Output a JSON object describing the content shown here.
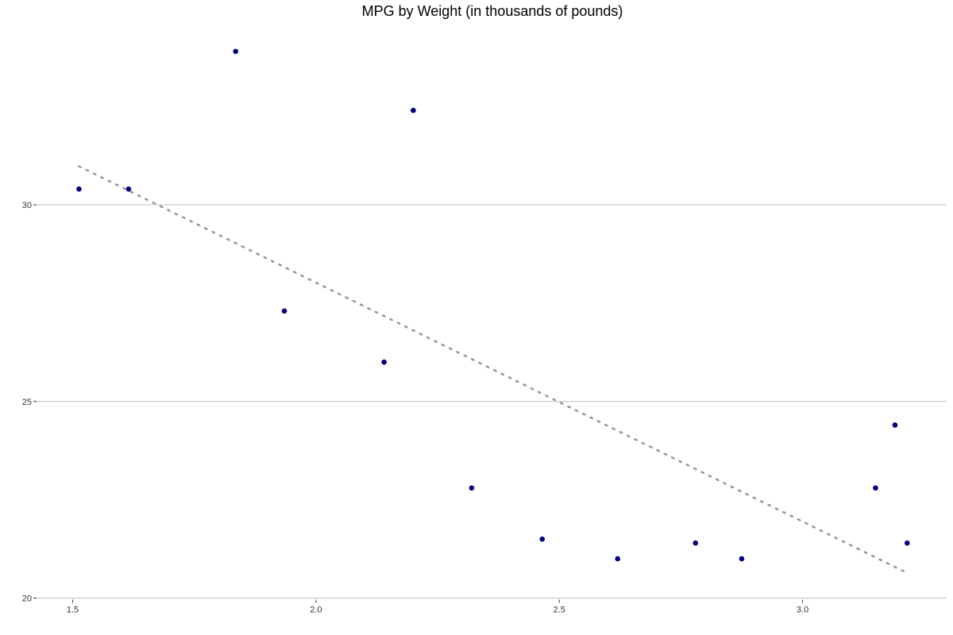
{
  "chart_data": {
    "type": "scatter",
    "title": "MPG by Weight (in thousands of pounds)",
    "xlabel": "",
    "ylabel": "",
    "xlim": [
      1.49,
      3.28
    ],
    "ylim": [
      20,
      34.2
    ],
    "x_ticks": [
      1.5,
      2.0,
      2.5,
      3.0
    ],
    "x_tick_labels": [
      "1.5",
      "2.0",
      "2.5",
      "3.0"
    ],
    "y_ticks": [
      20,
      25,
      30
    ],
    "y_tick_labels": [
      "20",
      "25",
      "30"
    ],
    "grid": {
      "horizontal": true,
      "vertical": false
    },
    "legend": null,
    "point_color": "#00007f",
    "trend_color": "#999999",
    "points": [
      {
        "x": 1.513,
        "y": 30.4
      },
      {
        "x": 1.615,
        "y": 30.4
      },
      {
        "x": 1.835,
        "y": 33.9
      },
      {
        "x": 1.935,
        "y": 27.3
      },
      {
        "x": 2.14,
        "y": 26.0
      },
      {
        "x": 2.2,
        "y": 32.4
      },
      {
        "x": 2.32,
        "y": 22.8
      },
      {
        "x": 2.465,
        "y": 21.5
      },
      {
        "x": 2.62,
        "y": 21.0
      },
      {
        "x": 2.78,
        "y": 21.4
      },
      {
        "x": 2.875,
        "y": 21.0
      },
      {
        "x": 3.15,
        "y": 22.8
      },
      {
        "x": 3.19,
        "y": 24.4
      },
      {
        "x": 3.215,
        "y": 21.4
      }
    ],
    "trend_line": {
      "style": "dotted",
      "x": [
        1.513,
        3.215
      ],
      "y": [
        30.98,
        20.64
      ]
    }
  }
}
